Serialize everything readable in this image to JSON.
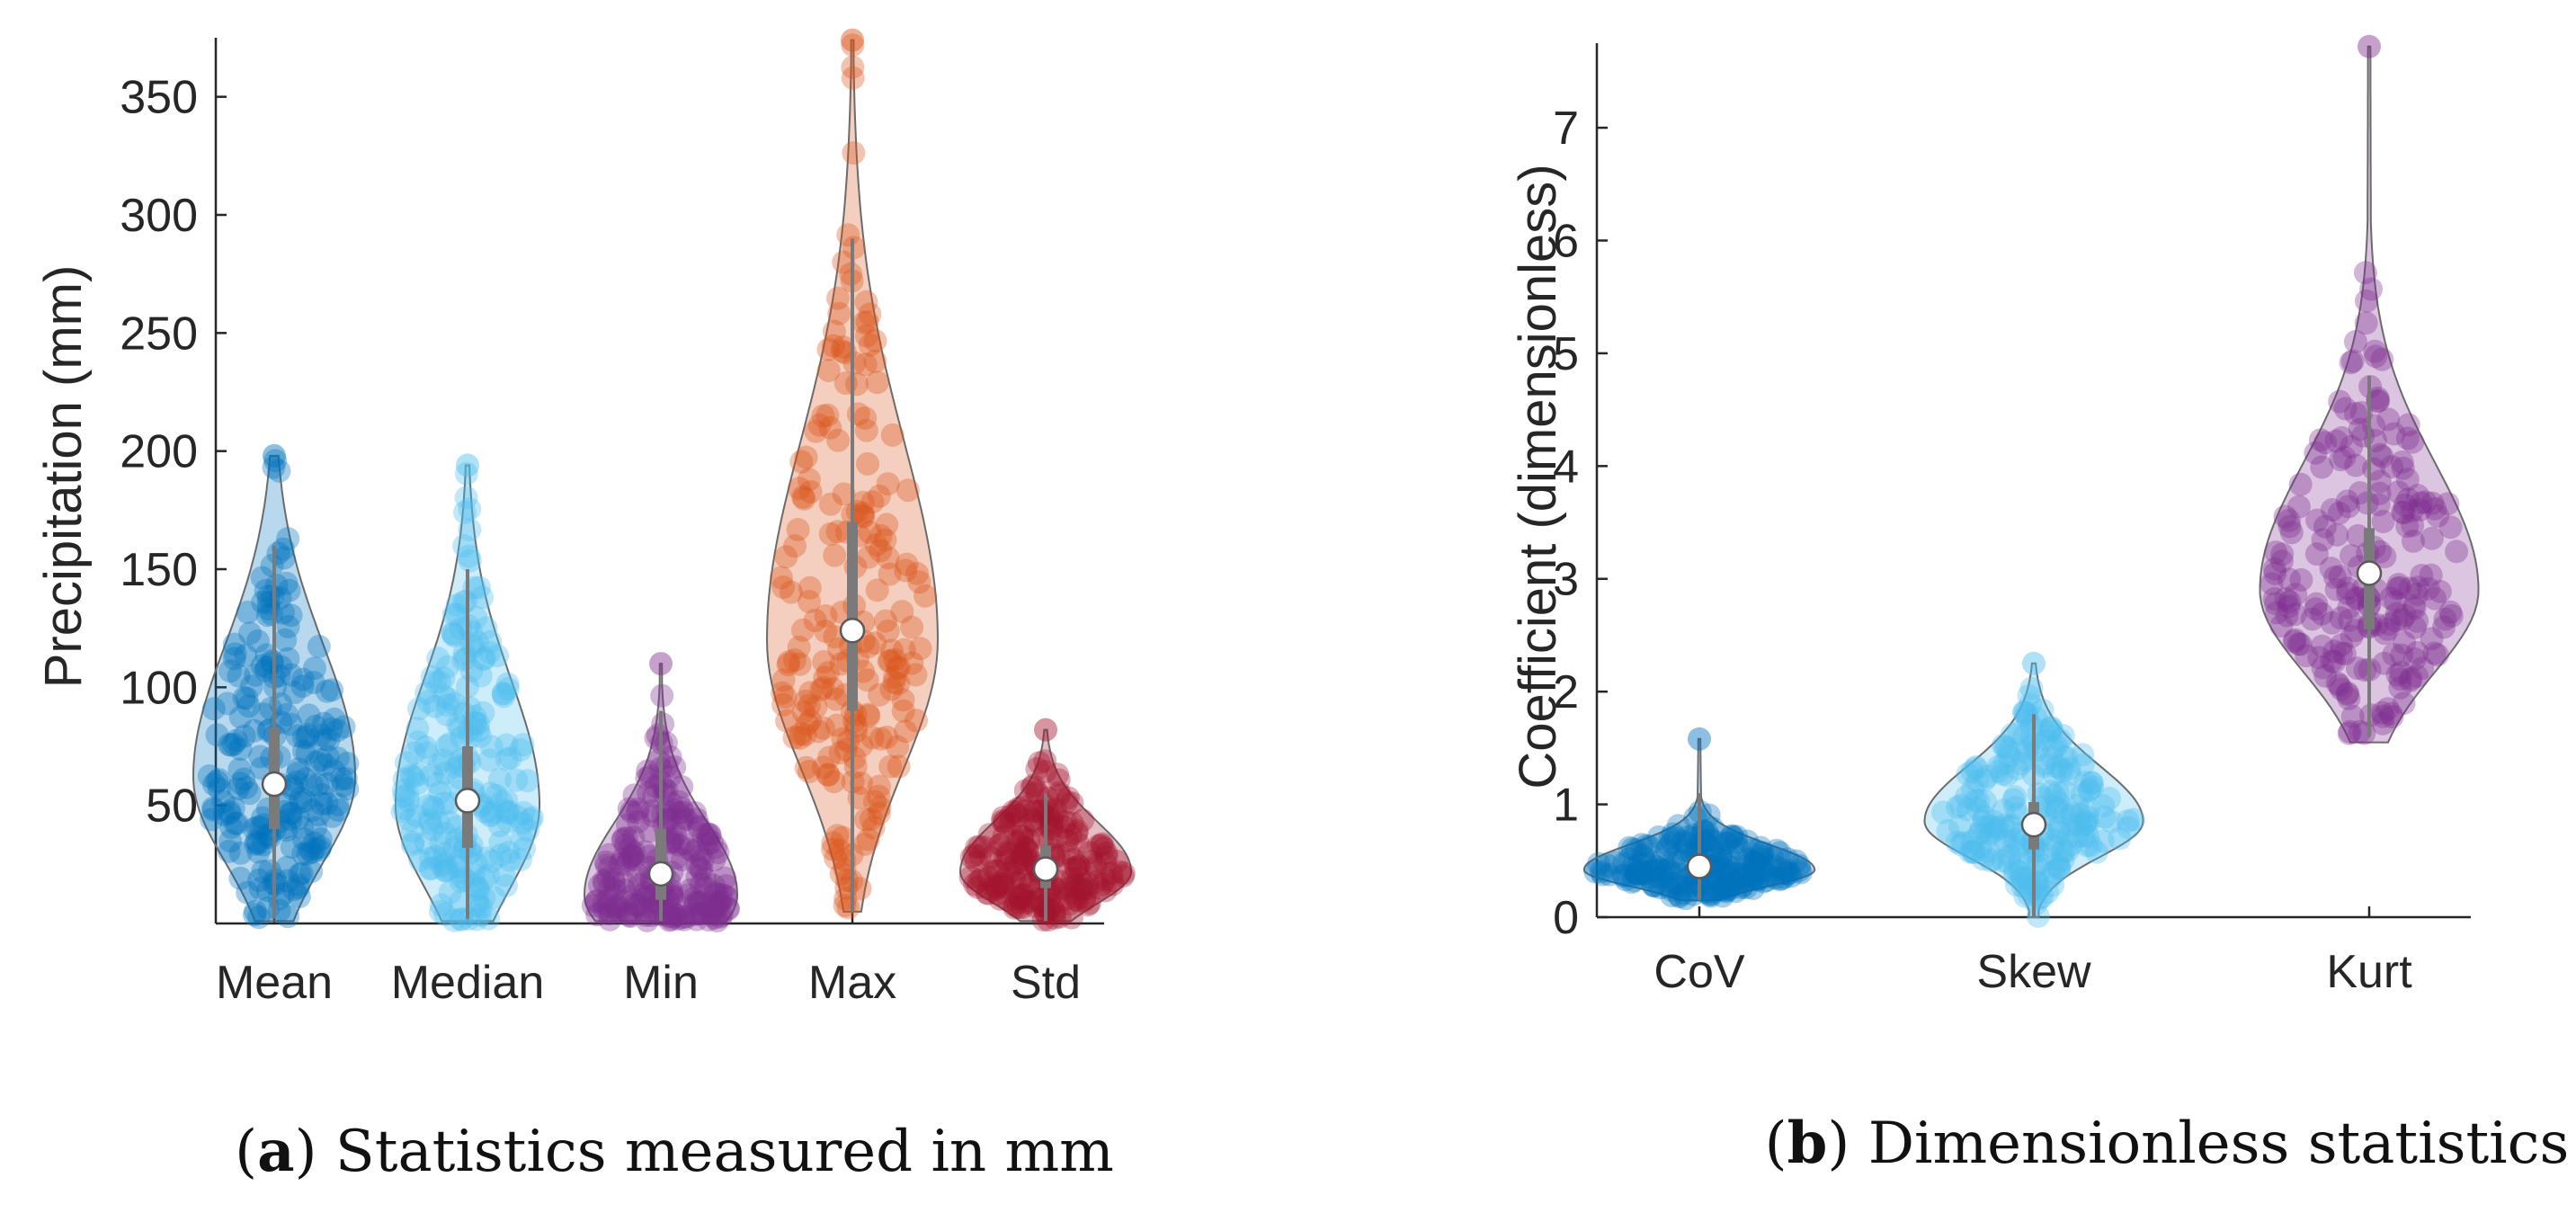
{
  "colors": {
    "blue": "#0072BD",
    "light_blue": "#4DBEEE",
    "purple": "#7E2F8E",
    "orange": "#D95319",
    "red": "#A2142F"
  },
  "chart_data": [
    {
      "type": "violin",
      "title": "",
      "xlabel": "",
      "ylabel": "Precipitation (mm)",
      "ylim": [
        0,
        375
      ],
      "yticks": [
        50,
        100,
        150,
        200,
        250,
        300,
        350
      ],
      "categories": [
        "Mean",
        "Median",
        "Min",
        "Max",
        "Std"
      ],
      "caption": {
        "letter": "a",
        "text": "Statistics measured in mm"
      },
      "series": [
        {
          "name": "Mean",
          "color": "blue",
          "median": 59,
          "q1": 40,
          "q3": 83,
          "whisker_low": 2,
          "whisker_high": 160,
          "max_outlier": 198,
          "min": 1,
          "max": 198,
          "mode": 62,
          "spread": 40,
          "bw": 0.9
        },
        {
          "name": "Median",
          "color": "light_blue",
          "median": 52,
          "q1": 32,
          "q3": 75,
          "whisker_low": 2,
          "whisker_high": 150,
          "max_outlier": 194,
          "min": 1,
          "max": 194,
          "mode": 50,
          "spread": 38,
          "bw": 0.8
        },
        {
          "name": "Min",
          "color": "purple",
          "median": 21,
          "q1": 10,
          "q3": 40,
          "whisker_low": 1,
          "whisker_high": 90,
          "max_outlier": 110,
          "min": 1,
          "max": 110,
          "mode": 12,
          "spread": 22,
          "bw": 0.85
        },
        {
          "name": "Max",
          "color": "orange",
          "median": 124,
          "q1": 90,
          "q3": 170,
          "whisker_low": 5,
          "whisker_high": 290,
          "max_outlier": 374,
          "min": 5,
          "max": 374,
          "mode": 120,
          "spread": 60,
          "bw": 0.95
        },
        {
          "name": "Std",
          "color": "red",
          "median": 23,
          "q1": 15,
          "q3": 33,
          "whisker_low": 1,
          "whisker_high": 55,
          "max_outlier": 82,
          "min": 1,
          "max": 82,
          "mode": 22,
          "spread": 15,
          "bw": 0.95
        }
      ]
    },
    {
      "type": "violin",
      "title": "",
      "xlabel": "",
      "ylabel": "Coefficient (dimensionless)",
      "ylim": [
        0,
        7.75
      ],
      "yticks": [
        0,
        1,
        2,
        3,
        4,
        5,
        6,
        7
      ],
      "categories": [
        "CoV",
        "Skew",
        "Kurt"
      ],
      "caption": {
        "letter": "b",
        "text": "Dimensionless statistics"
      },
      "series": [
        {
          "name": "CoV",
          "color": "blue",
          "median": 0.45,
          "q1": 0.36,
          "q3": 0.55,
          "whisker_low": 0.15,
          "whisker_high": 1.1,
          "max_outlier": 1.58,
          "min": 0.15,
          "max": 1.58,
          "mode": 0.42,
          "spread": 0.16,
          "bw": 0.95
        },
        {
          "name": "Skew",
          "color": "light_blue",
          "median": 0.82,
          "q1": 0.6,
          "q3": 1.02,
          "whisker_low": 0.0,
          "whisker_high": 1.8,
          "max_outlier": 2.25,
          "min": 0.0,
          "max": 2.25,
          "mode": 0.85,
          "spread": 0.35,
          "bw": 0.9
        },
        {
          "name": "Kurt",
          "color": "purple",
          "median": 3.05,
          "q1": 2.55,
          "q3": 3.45,
          "whisker_low": 1.6,
          "whisker_high": 4.8,
          "max_outlier": 7.72,
          "min": 1.55,
          "max": 7.72,
          "mode": 2.9,
          "spread": 0.8,
          "bw": 0.9
        }
      ]
    }
  ]
}
